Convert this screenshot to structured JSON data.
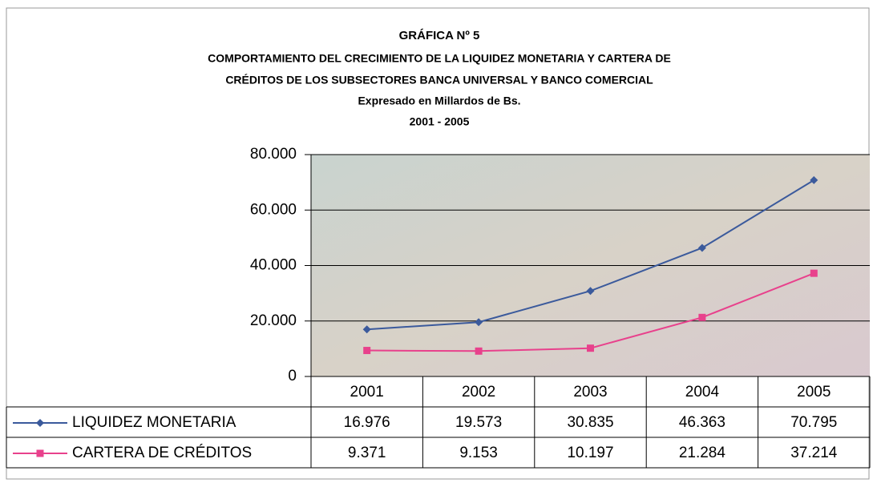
{
  "chart_data": {
    "type": "line",
    "title": "GRÁFICA Nº 5",
    "subtitle": [
      "COMPORTAMIENTO DEL CRECIMIENTO DE LA LIQUIDEZ MONETARIA Y CARTERA DE",
      "CRÉDITOS DE LOS SUBSECTORES BANCA UNIVERSAL Y BANCO COMERCIAL",
      "Expresado en Millardos de Bs.",
      "2001 - 2005"
    ],
    "categories": [
      "2001",
      "2002",
      "2003",
      "2004",
      "2005"
    ],
    "series": [
      {
        "name": "LIQUIDEZ MONETARIA",
        "color": "#3b5a9c",
        "marker": "diamond",
        "values": [
          16976,
          19573,
          30835,
          46363,
          70795
        ],
        "value_labels": [
          "16.976",
          "19.573",
          "30.835",
          "46.363",
          "70.795"
        ]
      },
      {
        "name": "CARTERA DE CRÉDITOS",
        "color": "#e8418c",
        "marker": "square",
        "values": [
          9371,
          9153,
          10197,
          21284,
          37214
        ],
        "value_labels": [
          "9.371",
          "9.153",
          "10.197",
          "21.284",
          "37.214"
        ]
      }
    ],
    "ylim": [
      0,
      80000
    ],
    "yticks": [
      0,
      {
        "value": 20000,
        "label": "20.000"
      },
      {
        "value": 40000,
        "label": "40.000"
      },
      {
        "value": 60000,
        "label": "60.000"
      },
      {
        "value": 80000,
        "label": "80.000"
      }
    ],
    "grid": true
  }
}
